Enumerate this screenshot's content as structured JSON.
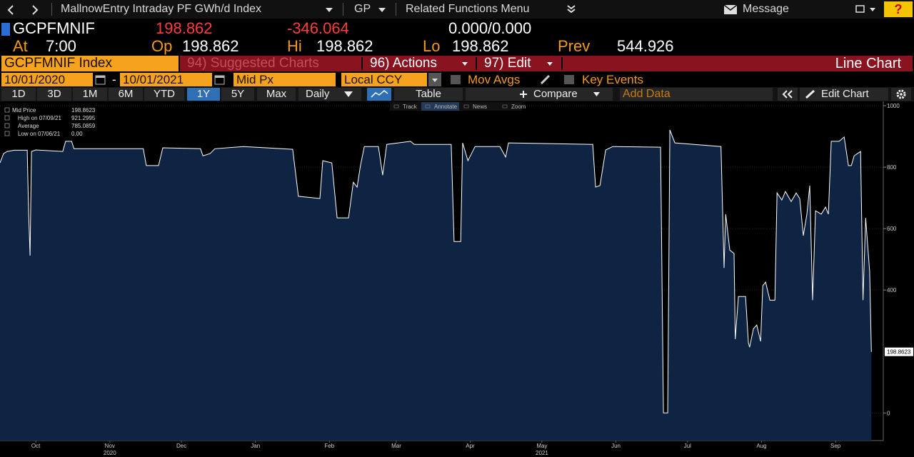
{
  "topbar": {
    "title": "MallnowEntry Intraday PF GWh/d Index",
    "gp": "GP",
    "related": "Related Functions Menu",
    "message": "Message",
    "help": "?"
  },
  "quote": {
    "ticker": "GCPFMNIF",
    "last": "198.862",
    "change": "-346.064",
    "bid_ask": "0.000/0.000"
  },
  "stats": [
    {
      "label": "At",
      "value": "7:00"
    },
    {
      "label": "Op",
      "value": "198.862"
    },
    {
      "label": "Hi",
      "value": "198.862"
    },
    {
      "label": "Lo",
      "value": "198.862"
    },
    {
      "label": "Prev",
      "value": "544.926"
    }
  ],
  "menu": {
    "security": "GCPFMNIF Index",
    "suggested": "94) Suggested Charts",
    "actions": "96) Actions",
    "edit": "97) Edit",
    "chart_type": "Line Chart"
  },
  "fields": {
    "start": "10/01/2020",
    "separator": "-",
    "end": "10/01/2021",
    "price": "Mid Px",
    "currency": "Local CCY",
    "mov_avgs": "Mov Avgs",
    "key_events": "Key Events"
  },
  "toolbar": {
    "periods": [
      "1D",
      "3D",
      "1M",
      "6M",
      "YTD",
      "1Y",
      "5Y",
      "Max"
    ],
    "selected_period": 5,
    "frequency": "Daily",
    "table": "Table",
    "compare": "Compare",
    "add_data": "Add Data",
    "edit_chart": "Edit Chart"
  },
  "chart_tools": [
    "Track",
    "Annotate",
    "News",
    "Zoom"
  ],
  "chart_data": {
    "type": "line",
    "legend": [
      {
        "label": "Mid Price",
        "value": "198.8623"
      },
      {
        "label": "High on 07/09/21",
        "value": "921.2995"
      },
      {
        "label": "Average",
        "value": "785.0859"
      },
      {
        "label": "Low on 07/06/21",
        "value": "0.00"
      }
    ],
    "series": [
      {
        "name": "Mid Price",
        "color": "#ffffff",
        "fill": "#0e2442",
        "x": [
          0,
          1.5,
          3,
          6,
          11.4,
          12,
          12.6,
          13.2,
          15,
          26.3,
          27.5,
          30,
          31,
          60,
          61.3,
          66.4,
          68.2,
          84,
          85,
          88,
          90,
          102,
          122.6,
          125,
          134,
          135.2,
          139,
          141.2,
          146,
          148,
          149.6,
          151,
          152.6,
          158.5,
          160.3,
          162,
          172,
          173.5,
          189,
          190.2,
          193,
          193.8,
          196,
          199,
          209.4,
          211.8,
          213,
          248.3,
          249.5,
          251.3,
          253.7,
          256.7,
          276.7,
          277.9,
          279.7,
          280.6,
          282.7,
          302,
          303.3,
          304,
          305.7,
          307.5,
          308,
          309.3,
          312.3,
          313.5,
          314,
          315.6,
          317,
          318.6,
          319.5,
          320.7,
          322.5,
          324.6,
          325.5,
          327.5,
          329,
          331.4,
          333.5,
          335,
          336.5,
          338,
          339.2,
          340.4,
          341.6,
          344,
          345.8,
          347,
          348.2,
          351.5,
          353.6,
          355.4,
          356.6,
          357.8,
          360.5,
          361.5,
          362.6,
          364.3,
          365
        ],
        "values": [
          814,
          844,
          851,
          855,
          855,
          650,
          512,
          851,
          856,
          851,
          884,
          884,
          860,
          860,
          805,
          805,
          863,
          860,
          837,
          844,
          860,
          867,
          858,
          705,
          698,
          821,
          814,
          635,
          635,
          751,
          735,
          805,
          867,
          867,
          774,
          874,
          884,
          874,
          874,
          558,
          558,
          879,
          821,
          867,
          867,
          833,
          879,
          874,
          735,
          740,
          856,
          867,
          865,
          0,
          0,
          921.3,
          879,
          867,
          472,
          647,
          530,
          519,
          240,
          379,
          379,
          228,
          214,
          274,
          286,
          233,
          414,
          426,
          367,
          367,
          716,
          693,
          721,
          688,
          716,
          698,
          577,
          647,
          740,
          367,
          658,
          647,
          670,
          647,
          884,
          884,
          898,
          805,
          805,
          837,
          851,
          367,
          635,
          460,
          198.8623
        ]
      }
    ],
    "last_label": "198.8623",
    "xlim": [
      0,
      370
    ],
    "ylim": [
      -90,
      1014
    ],
    "yticks": [
      0,
      400,
      600,
      800,
      1000
    ],
    "xticks": [
      {
        "value": 15,
        "label": "Oct"
      },
      {
        "value": 46,
        "label": "Nov"
      },
      {
        "value": 76,
        "label": "Dec"
      },
      {
        "value": 107,
        "label": "Jan"
      },
      {
        "value": 138,
        "label": "Feb"
      },
      {
        "value": 166,
        "label": "Mar"
      },
      {
        "value": 197,
        "label": "Apr"
      },
      {
        "value": 227,
        "label": "May"
      },
      {
        "value": 258,
        "label": "Jun"
      },
      {
        "value": 288,
        "label": "Jul"
      },
      {
        "value": 319,
        "label": "Aug"
      },
      {
        "value": 350,
        "label": "Sep"
      }
    ],
    "years": [
      {
        "value": 46,
        "label": "2020"
      },
      {
        "value": 227,
        "label": "2021"
      }
    ],
    "grid": true
  }
}
